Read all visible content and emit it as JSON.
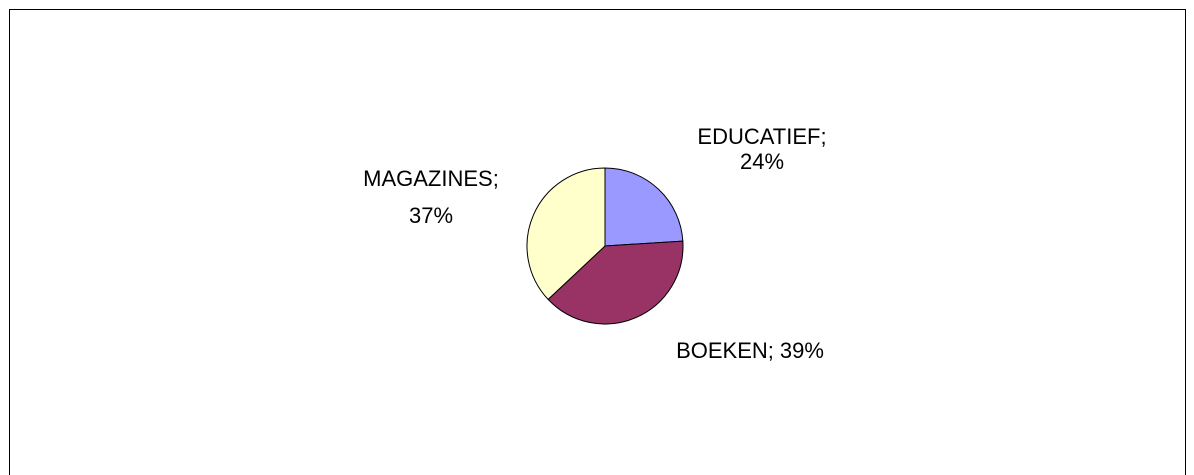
{
  "chart_data": {
    "type": "pie",
    "categories": [
      "EDUCATIEF",
      "BOEKEN",
      "MAGAZINES"
    ],
    "values": [
      24,
      39,
      37
    ],
    "value_labels": [
      "24%",
      "39%",
      "37%"
    ],
    "label_separator": ";",
    "colors": [
      "#9999ff",
      "#993366",
      "#ffffcc"
    ]
  }
}
